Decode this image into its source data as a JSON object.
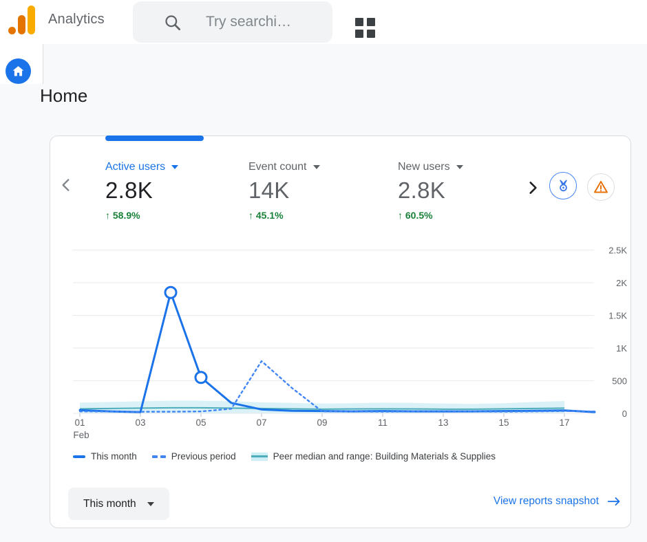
{
  "topbar": {
    "brand": "Analytics",
    "search_placeholder": "Try searchi…"
  },
  "page": {
    "title": "Home"
  },
  "card": {
    "metrics": [
      {
        "label": "Active users",
        "value": "2.8K",
        "delta": "↑ 58.9%",
        "active": true
      },
      {
        "label": "Event count",
        "value": "14K",
        "delta": "↑ 45.1%",
        "active": false
      },
      {
        "label": "New users",
        "value": "2.8K",
        "delta": "↑ 60.5%",
        "active": false
      }
    ],
    "period_button_label": "This month",
    "snapshot_link_label": "View reports snapshot"
  },
  "colors": {
    "accent_blue": "#1a73e8",
    "previous_blue": "#4285f4",
    "delta_green": "#188038",
    "band_teal": "#cdeef4",
    "median_teal": "#4cacba",
    "grid_gray": "#e8eaed",
    "axis_text": "#5f6368",
    "brand_orange": "#e37400",
    "brand_yellow": "#f9ab00",
    "warning_orange": "#e8710a"
  },
  "chart_data": {
    "type": "line",
    "title": "Active users trend, this month vs previous period vs peer range",
    "x_unit": "day of month",
    "month_label": "Feb",
    "grid": "horizontal",
    "legend_position": "bottom",
    "ylim": [
      0,
      2610
    ],
    "series": [
      {
        "name": "This month",
        "style": "solid",
        "color": "#1a73e8",
        "values": [
          50,
          30,
          20,
          1850,
          550,
          160,
          60,
          40,
          35,
          30,
          35,
          30,
          30,
          30,
          35,
          40,
          45,
          20
        ]
      },
      {
        "name": "Previous period",
        "style": "dashed",
        "color": "#4285f4",
        "values": [
          30,
          28,
          25,
          25,
          30,
          70,
          800,
          390,
          30,
          28,
          25,
          28,
          25,
          28,
          25,
          30,
          35,
          30
        ]
      }
    ],
    "markers": [
      {
        "series": "This month",
        "day": 4,
        "value": 1850
      },
      {
        "series": "This month",
        "day": 5,
        "value": 550
      }
    ],
    "peer_band": {
      "name": "Peer median and range: Building Materials & Supplies",
      "band_color": "#cdeef4",
      "median_color": "#4cacba",
      "high": [
        165,
        175,
        185,
        195,
        195,
        185,
        170,
        160,
        150,
        155,
        165,
        160,
        150,
        145,
        155,
        175,
        190
      ],
      "low": [
        5,
        5,
        5,
        5,
        5,
        5,
        5,
        5,
        5,
        5,
        5,
        5,
        5,
        5,
        5,
        5,
        5
      ],
      "median": [
        70,
        75,
        80,
        85,
        85,
        80,
        75,
        70,
        65,
        68,
        70,
        68,
        65,
        65,
        70,
        75,
        80
      ]
    },
    "x_ticks": [
      {
        "day": 1,
        "label": "01"
      },
      {
        "day": 3,
        "label": "03"
      },
      {
        "day": 5,
        "label": "05"
      },
      {
        "day": 7,
        "label": "07"
      },
      {
        "day": 9,
        "label": "09"
      },
      {
        "day": 11,
        "label": "11"
      },
      {
        "day": 13,
        "label": "13"
      },
      {
        "day": 15,
        "label": "15"
      },
      {
        "day": 17,
        "label": "17"
      }
    ],
    "y_ticks": [
      {
        "value": 0,
        "label": "0"
      },
      {
        "value": 500,
        "label": "500"
      },
      {
        "value": 1000,
        "label": "1K"
      },
      {
        "value": 1500,
        "label": "1.5K"
      },
      {
        "value": 2000,
        "label": "2K"
      },
      {
        "value": 2500,
        "label": "2.5K"
      }
    ]
  }
}
